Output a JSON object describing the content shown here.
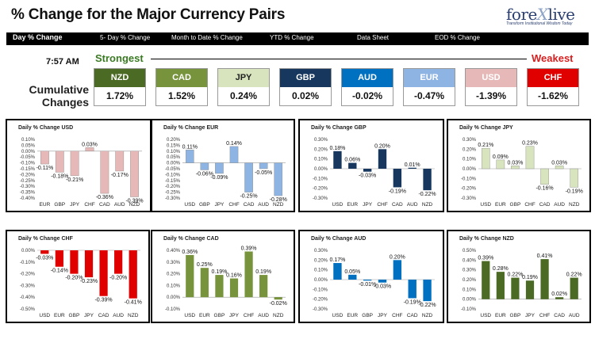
{
  "header": {
    "title": "% Change for the Major Currency Pairs",
    "logo_main": "fore",
    "logo_x": "X",
    "logo_end": "live",
    "logo_sub": "Transform Institutional Wisdom Today"
  },
  "tabs": [
    {
      "label": "Day % Change",
      "active": true
    },
    {
      "label": "5- Day % Change",
      "active": false
    },
    {
      "label": "Month to Date % Change",
      "active": false
    },
    {
      "label": "YTD % Change",
      "active": false
    },
    {
      "label": "Data Sheet",
      "active": false
    },
    {
      "label": "EOD % Change",
      "active": false
    }
  ],
  "summary": {
    "time": "7:57 AM",
    "strongest": "Strongest",
    "weakest": "Weakest",
    "label_line1": "Cumulative",
    "label_line2": "Changes",
    "cards": [
      {
        "currency": "NZD",
        "value": "1.72%",
        "color": "#4b6b24"
      },
      {
        "currency": "CAD",
        "value": "1.52%",
        "color": "#77933c"
      },
      {
        "currency": "JPY",
        "value": "0.24%",
        "color": "#d7e4bd"
      },
      {
        "currency": "GBP",
        "value": "0.02%",
        "color": "#17375e"
      },
      {
        "currency": "AUD",
        "value": "-0.02%",
        "color": "#0070c0"
      },
      {
        "currency": "EUR",
        "value": "-0.47%",
        "color": "#8eb4e3"
      },
      {
        "currency": "USD",
        "value": "-1.39%",
        "color": "#e6b9b8"
      },
      {
        "currency": "CHF",
        "value": "-1.62%",
        "color": "#e00000"
      }
    ]
  },
  "chart_data": [
    {
      "type": "bar",
      "title": "Daily % Change USD",
      "categories": [
        "EUR",
        "GBP",
        "JPY",
        "CHF",
        "CAD",
        "AUD",
        "NZD"
      ],
      "values": [
        -0.11,
        -0.18,
        -0.21,
        0.03,
        -0.36,
        -0.17,
        -0.39
      ],
      "labels": [
        "-0.11%",
        "-0.18%",
        "-0.21%",
        "0.03%",
        "-0.36%",
        "-0.17%",
        "-0.39%"
      ],
      "ticks": [
        "0.10%",
        "0.05%",
        "0.00%",
        "-0.05%",
        "-0.10%",
        "-0.15%",
        "-0.20%",
        "-0.25%",
        "-0.30%",
        "-0.35%",
        "-0.40%"
      ],
      "ylim": [
        -0.4,
        0.1
      ],
      "color": "#e6b9b8"
    },
    {
      "type": "bar",
      "title": "Daily % Change EUR",
      "categories": [
        "USD",
        "GBP",
        "JPY",
        "CHF",
        "CAD",
        "AUD",
        "NZD"
      ],
      "values": [
        0.11,
        -0.06,
        -0.09,
        0.14,
        -0.25,
        -0.05,
        -0.28
      ],
      "labels": [
        "0.11%",
        "-0.06%",
        "-0.09%",
        "0.14%",
        "-0.25%",
        "-0.05%",
        "-0.28%"
      ],
      "ticks": [
        "0.20%",
        "0.15%",
        "0.10%",
        "0.05%",
        "0.00%",
        "-0.05%",
        "-0.10%",
        "-0.15%",
        "-0.20%",
        "-0.25%",
        "-0.30%"
      ],
      "ylim": [
        -0.3,
        0.2
      ],
      "color": "#8eb4e3"
    },
    {
      "type": "bar",
      "title": "Daily % Change GBP",
      "categories": [
        "USD",
        "EUR",
        "JPY",
        "CHF",
        "CAD",
        "AUD",
        "NZD"
      ],
      "values": [
        0.18,
        0.06,
        -0.03,
        0.2,
        -0.19,
        0.01,
        -0.22
      ],
      "labels": [
        "0.18%",
        "0.06%",
        "-0.03%",
        "0.20%",
        "-0.19%",
        "0.01%",
        "-0.22%"
      ],
      "ticks": [
        "0.30%",
        "0.20%",
        "0.10%",
        "0.00%",
        "-0.10%",
        "-0.20%",
        "-0.30%"
      ],
      "ylim": [
        -0.3,
        0.3
      ],
      "color": "#17375e"
    },
    {
      "type": "bar",
      "title": "Daily % Change JPY",
      "categories": [
        "USD",
        "EUR",
        "GBP",
        "CHF",
        "CAD",
        "AUD",
        "NZD"
      ],
      "values": [
        0.21,
        0.09,
        0.03,
        0.23,
        -0.16,
        0.03,
        -0.19
      ],
      "labels": [
        "0.21%",
        "0.09%",
        "0.03%",
        "0.23%",
        "-0.16%",
        "0.03%",
        "-0.19%"
      ],
      "ticks": [
        "0.30%",
        "0.20%",
        "0.10%",
        "0.00%",
        "-0.10%",
        "-0.20%",
        "-0.30%"
      ],
      "ylim": [
        -0.3,
        0.3
      ],
      "color": "#d7e4bd"
    },
    {
      "type": "bar",
      "title": "Daily % Change CHF",
      "categories": [
        "USD",
        "EUR",
        "GBP",
        "JPY",
        "CAD",
        "AUD",
        "NZD"
      ],
      "values": [
        -0.03,
        -0.14,
        -0.2,
        -0.23,
        -0.39,
        -0.2,
        -0.41
      ],
      "labels": [
        "-0.03%",
        "-0.14%",
        "-0.20%",
        "-0.23%",
        "-0.39%",
        "-0.20%",
        "-0.41%"
      ],
      "ticks": [
        "0.00%",
        "-0.10%",
        "-0.20%",
        "-0.30%",
        "-0.40%",
        "-0.50%"
      ],
      "ylim": [
        -0.5,
        0.0
      ],
      "color": "#e00000"
    },
    {
      "type": "bar",
      "title": "Daily % Change CAD",
      "categories": [
        "USD",
        "EUR",
        "GBP",
        "JPY",
        "CHF",
        "AUD",
        "NZD"
      ],
      "values": [
        0.36,
        0.25,
        0.19,
        0.16,
        0.39,
        0.19,
        -0.02
      ],
      "labels": [
        "0.36%",
        "0.25%",
        "0.19%",
        "0.16%",
        "0.39%",
        "0.19%",
        "-0.02%"
      ],
      "ticks": [
        "0.40%",
        "0.30%",
        "0.20%",
        "0.10%",
        "0.00%",
        "-0.10%"
      ],
      "ylim": [
        -0.1,
        0.4
      ],
      "color": "#77933c"
    },
    {
      "type": "bar",
      "title": "Daily % Change AUD",
      "categories": [
        "USD",
        "EUR",
        "GBP",
        "JPY",
        "CHF",
        "CAD",
        "NZD"
      ],
      "values": [
        0.17,
        0.05,
        -0.01,
        -0.03,
        0.2,
        -0.19,
        -0.22
      ],
      "labels": [
        "0.17%",
        "0.05%",
        "-0.01%",
        "-0.03%",
        "0.20%",
        "-0.19%",
        "-0.22%"
      ],
      "ticks": [
        "0.30%",
        "0.20%",
        "0.10%",
        "0.00%",
        "-0.10%",
        "-0.20%",
        "-0.30%"
      ],
      "ylim": [
        -0.3,
        0.3
      ],
      "color": "#0070c0"
    },
    {
      "type": "bar",
      "title": "Daily % Change NZD",
      "categories": [
        "USD",
        "EUR",
        "GBP",
        "JPY",
        "CHF",
        "CAD",
        "AUD"
      ],
      "values": [
        0.39,
        0.28,
        0.22,
        0.19,
        0.41,
        0.02,
        0.22
      ],
      "labels": [
        "0.39%",
        "0.28%",
        "0.22%",
        "0.19%",
        "0.41%",
        "0.02%",
        "0.22%"
      ],
      "ticks": [
        "0.50%",
        "0.40%",
        "0.30%",
        "0.20%",
        "0.10%",
        "0.00%",
        "-0.10%"
      ],
      "ylim": [
        -0.1,
        0.5
      ],
      "color": "#4b6b24"
    }
  ]
}
